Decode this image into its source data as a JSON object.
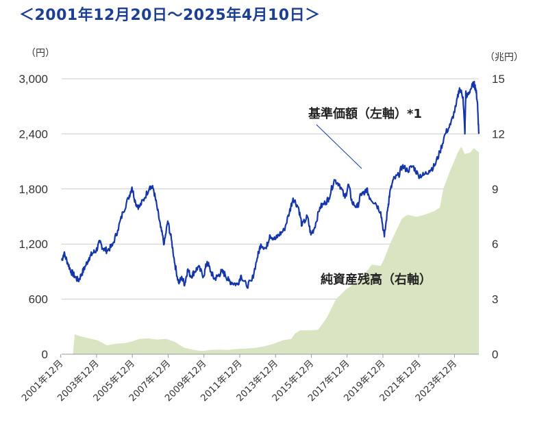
{
  "title": "＜2001年12月20日～2025年4月10日＞",
  "colors": {
    "price_line": "#1536a8",
    "assets_fill": "#d9e5c2",
    "grid": "#cccccc",
    "axis": "#999999"
  },
  "chart_data": {
    "type": "line",
    "left_axis": {
      "unit_label": "（円）",
      "ticks": [
        "0",
        "600",
        "1,200",
        "1,800",
        "2,400",
        "3,000"
      ],
      "ylim": [
        0,
        3000
      ]
    },
    "right_axis": {
      "unit_label": "（兆円）",
      "ticks": [
        "0",
        "3",
        "6",
        "9",
        "12",
        "15"
      ],
      "ylim": [
        0,
        15
      ]
    },
    "x_ticks": [
      "2001年12月",
      "2003年12月",
      "2005年12月",
      "2007年12月",
      "2009年12月",
      "2011年12月",
      "2013年12月",
      "2015年12月",
      "2017年12月",
      "2019年12月",
      "2021年12月",
      "2023年12月"
    ],
    "x_range": [
      2001.97,
      2025.28
    ],
    "annotations": {
      "price": "基準価額（左軸）*1",
      "assets": "純資産残高（右軸）"
    },
    "series": [
      {
        "name": "基準価額（左軸）*1",
        "axis": "left",
        "style": "line",
        "x": [
          2001.97,
          2002.1,
          2002.3,
          2002.5,
          2002.7,
          2002.9,
          2003.1,
          2003.3,
          2003.5,
          2003.7,
          2003.9,
          2004.1,
          2004.3,
          2004.5,
          2004.8,
          2005.1,
          2005.4,
          2005.7,
          2005.9,
          2006.1,
          2006.3,
          2006.6,
          2006.9,
          2007.1,
          2007.3,
          2007.5,
          2007.7,
          2007.9,
          2008.1,
          2008.3,
          2008.5,
          2008.7,
          2008.85,
          2009.0,
          2009.2,
          2009.4,
          2009.6,
          2009.9,
          2010.1,
          2010.3,
          2010.5,
          2010.7,
          2010.9,
          2011.1,
          2011.3,
          2011.5,
          2011.8,
          2012.0,
          2012.3,
          2012.6,
          2012.9,
          2013.1,
          2013.4,
          2013.6,
          2013.9,
          2014.1,
          2014.4,
          2014.7,
          2014.9,
          2015.2,
          2015.4,
          2015.7,
          2015.9,
          2016.1,
          2016.4,
          2016.7,
          2016.9,
          2017.2,
          2017.5,
          2017.8,
          2018.0,
          2018.2,
          2018.5,
          2018.7,
          2018.9,
          2019.0,
          2019.2,
          2019.5,
          2019.8,
          2020.0,
          2020.2,
          2020.3,
          2020.5,
          2020.8,
          2021.0,
          2021.3,
          2021.6,
          2021.9,
          2022.2,
          2022.5,
          2022.8,
          2023.1,
          2023.4,
          2023.7,
          2024.0,
          2024.2,
          2024.4,
          2024.5,
          2024.55,
          2024.6,
          2024.8,
          2025.0,
          2025.1,
          2025.2,
          2025.28
        ],
        "values": [
          1020,
          1100,
          1000,
          900,
          850,
          800,
          880,
          960,
          1050,
          1100,
          1130,
          1220,
          1150,
          1130,
          1180,
          1350,
          1550,
          1700,
          1820,
          1650,
          1600,
          1700,
          1830,
          1800,
          1600,
          1380,
          1200,
          1450,
          1250,
          980,
          780,
          830,
          760,
          920,
          850,
          900,
          950,
          850,
          1010,
          900,
          820,
          850,
          900,
          870,
          800,
          780,
          760,
          860,
          740,
          800,
          1050,
          1200,
          1150,
          1300,
          1250,
          1300,
          1350,
          1550,
          1700,
          1600,
          1400,
          1500,
          1300,
          1380,
          1600,
          1650,
          1700,
          1900,
          1850,
          1700,
          1850,
          1650,
          1600,
          1750,
          1750,
          1800,
          1700,
          1650,
          1550,
          1280,
          1600,
          1750,
          1900,
          1950,
          2050,
          2000,
          2050,
          1950,
          1950,
          2000,
          2050,
          2200,
          2400,
          2500,
          2700,
          2900,
          2800,
          2400,
          2850,
          2800,
          2880,
          2950,
          2900,
          2750,
          2400
        ]
      },
      {
        "name": "純資産残高（右軸）",
        "axis": "right",
        "style": "area",
        "x": [
          2001.97,
          2002.6,
          2002.7,
          2003.0,
          2003.5,
          2004.0,
          2004.5,
          2005.0,
          2005.5,
          2005.9,
          2006.3,
          2006.8,
          2007.3,
          2007.8,
          2008.3,
          2008.8,
          2009.3,
          2009.8,
          2010.3,
          2010.8,
          2011.3,
          2011.8,
          2012.3,
          2012.8,
          2013.3,
          2013.8,
          2014.3,
          2014.8,
          2015.0,
          2015.3,
          2015.8,
          2016.3,
          2016.8,
          2017.3,
          2017.8,
          2018.3,
          2018.8,
          2019.0,
          2019.3,
          2019.8,
          2020.0,
          2020.3,
          2020.8,
          2021.0,
          2021.3,
          2021.8,
          2022.3,
          2022.8,
          2023.1,
          2023.3,
          2023.6,
          2023.9,
          2024.1,
          2024.3,
          2024.5,
          2024.8,
          2025.0,
          2025.28
        ],
        "values": [
          0,
          0,
          1.1,
          1.0,
          0.85,
          0.75,
          0.5,
          0.55,
          0.6,
          0.7,
          0.85,
          0.85,
          0.8,
          0.85,
          0.65,
          0.35,
          0.25,
          0.2,
          0.22,
          0.25,
          0.25,
          0.27,
          0.3,
          0.35,
          0.45,
          0.55,
          0.75,
          0.85,
          1.1,
          1.3,
          1.3,
          1.35,
          2.0,
          3.0,
          3.5,
          3.8,
          4.3,
          4.5,
          4.9,
          4.8,
          5.2,
          6.0,
          7.0,
          7.4,
          7.6,
          7.5,
          7.6,
          7.8,
          8.0,
          9.0,
          9.8,
          10.5,
          11.0,
          11.3,
          10.9,
          11.0,
          11.2,
          11.0
        ]
      }
    ]
  }
}
